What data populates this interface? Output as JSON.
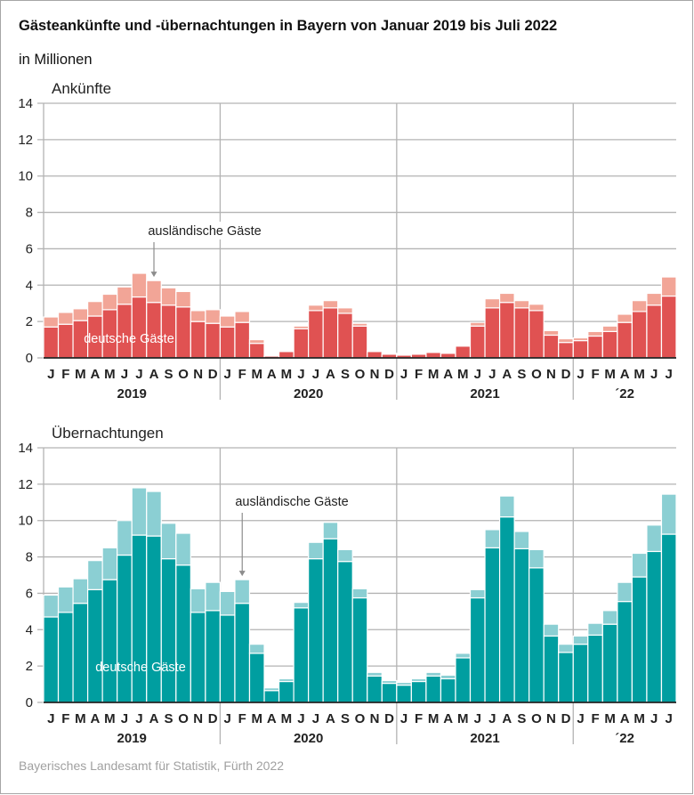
{
  "title": "Gästeankünfte und -übernachtungen in Bayern von Januar 2019 bis Juli 2022",
  "subtitle": "in Millionen",
  "source": "Bayerisches Landesamt für Statistik, Fürth 2022",
  "chart_data": [
    {
      "type": "bar",
      "stacked": true,
      "title": "Ankünfte",
      "ylabel": "in Millionen",
      "ylim": [
        0,
        14
      ],
      "yticks": [
        0,
        2,
        4,
        6,
        8,
        10,
        12,
        14
      ],
      "grid": true,
      "month_labels": [
        "J",
        "F",
        "M",
        "A",
        "M",
        "J",
        "J",
        "A",
        "S",
        "O",
        "N",
        "D",
        "J",
        "F",
        "M",
        "A",
        "M",
        "J",
        "J",
        "A",
        "S",
        "O",
        "N",
        "D",
        "J",
        "F",
        "M",
        "A",
        "M",
        "J",
        "J",
        "A",
        "S",
        "O",
        "N",
        "D",
        "J",
        "F",
        "M",
        "A",
        "M",
        "J",
        "J"
      ],
      "year_labels": [
        {
          "label": "2019",
          "start": 0,
          "count": 12
        },
        {
          "label": "2020",
          "start": 12,
          "count": 12
        },
        {
          "label": "2021",
          "start": 24,
          "count": 12
        },
        {
          "label": "´22",
          "start": 36,
          "count": 7
        }
      ],
      "series": [
        {
          "name": "deutsche Gäste",
          "color": "#e05252",
          "values": [
            1.7,
            1.85,
            2.05,
            2.3,
            2.65,
            2.95,
            3.35,
            3.05,
            2.9,
            2.8,
            2.0,
            1.9,
            1.7,
            1.95,
            0.8,
            0.1,
            0.35,
            1.6,
            2.6,
            2.75,
            2.45,
            1.75,
            0.35,
            0.2,
            0.15,
            0.2,
            0.3,
            0.25,
            0.65,
            1.75,
            2.75,
            3.05,
            2.75,
            2.6,
            1.25,
            0.85,
            0.95,
            1.2,
            1.45,
            1.95,
            2.55,
            2.9,
            3.4
          ]
        },
        {
          "name": "ausländische Gäste",
          "color": "#f2a597",
          "values": [
            0.55,
            0.65,
            0.65,
            0.8,
            0.85,
            0.95,
            1.3,
            1.2,
            0.95,
            0.85,
            0.6,
            0.75,
            0.6,
            0.6,
            0.2,
            0.02,
            0.02,
            0.15,
            0.3,
            0.4,
            0.3,
            0.15,
            0.05,
            0.05,
            0.05,
            0.05,
            0.05,
            0.05,
            0.05,
            0.2,
            0.5,
            0.5,
            0.4,
            0.35,
            0.25,
            0.2,
            0.15,
            0.25,
            0.3,
            0.45,
            0.6,
            0.65,
            1.05
          ]
        }
      ],
      "annotations": [
        {
          "text": "ausländische Gäste",
          "target_index": 7,
          "series": "ausländische Gäste"
        },
        {
          "text": "deutsche Gäste",
          "series": "deutsche Gäste"
        }
      ]
    },
    {
      "type": "bar",
      "stacked": true,
      "title": "Übernachtungen",
      "ylabel": "in Millionen",
      "ylim": [
        0,
        14
      ],
      "yticks": [
        0,
        2,
        4,
        6,
        8,
        10,
        12,
        14
      ],
      "grid": true,
      "month_labels": [
        "J",
        "F",
        "M",
        "A",
        "M",
        "J",
        "J",
        "A",
        "S",
        "O",
        "N",
        "D",
        "J",
        "F",
        "M",
        "A",
        "M",
        "J",
        "J",
        "A",
        "S",
        "O",
        "N",
        "D",
        "J",
        "F",
        "M",
        "A",
        "M",
        "J",
        "J",
        "A",
        "S",
        "O",
        "N",
        "D",
        "J",
        "F",
        "M",
        "A",
        "M",
        "J",
        "J"
      ],
      "year_labels": [
        {
          "label": "2019",
          "start": 0,
          "count": 12
        },
        {
          "label": "2020",
          "start": 12,
          "count": 12
        },
        {
          "label": "2021",
          "start": 24,
          "count": 12
        },
        {
          "label": "´22",
          "start": 36,
          "count": 7
        }
      ],
      "series": [
        {
          "name": "deutsche Gäste",
          "color": "#009ea0",
          "values": [
            4.7,
            4.95,
            5.45,
            6.2,
            6.75,
            8.1,
            9.2,
            9.15,
            7.9,
            7.55,
            4.95,
            5.05,
            4.8,
            5.45,
            2.7,
            0.65,
            1.15,
            5.2,
            7.9,
            9.0,
            7.75,
            5.75,
            1.45,
            1.05,
            0.95,
            1.15,
            1.45,
            1.3,
            2.45,
            5.75,
            8.5,
            10.2,
            8.45,
            7.4,
            3.65,
            2.75,
            3.2,
            3.7,
            4.3,
            5.55,
            6.9,
            8.3,
            9.25
          ]
        },
        {
          "name": "ausländische Gäste",
          "color": "#8bcfd3",
          "values": [
            1.2,
            1.4,
            1.35,
            1.6,
            1.75,
            1.9,
            2.6,
            2.45,
            1.95,
            1.75,
            1.3,
            1.55,
            1.3,
            1.3,
            0.5,
            0.15,
            0.15,
            0.3,
            0.9,
            0.9,
            0.65,
            0.5,
            0.2,
            0.15,
            0.15,
            0.15,
            0.2,
            0.2,
            0.25,
            0.45,
            1.0,
            1.15,
            0.95,
            1.0,
            0.65,
            0.45,
            0.45,
            0.65,
            0.75,
            1.05,
            1.3,
            1.45,
            2.2
          ]
        }
      ],
      "annotations": [
        {
          "text": "ausländische Gäste",
          "target_index": 13,
          "series": "ausländische Gäste"
        },
        {
          "text": "deutsche Gäste",
          "series": "deutsche Gäste"
        }
      ]
    }
  ]
}
